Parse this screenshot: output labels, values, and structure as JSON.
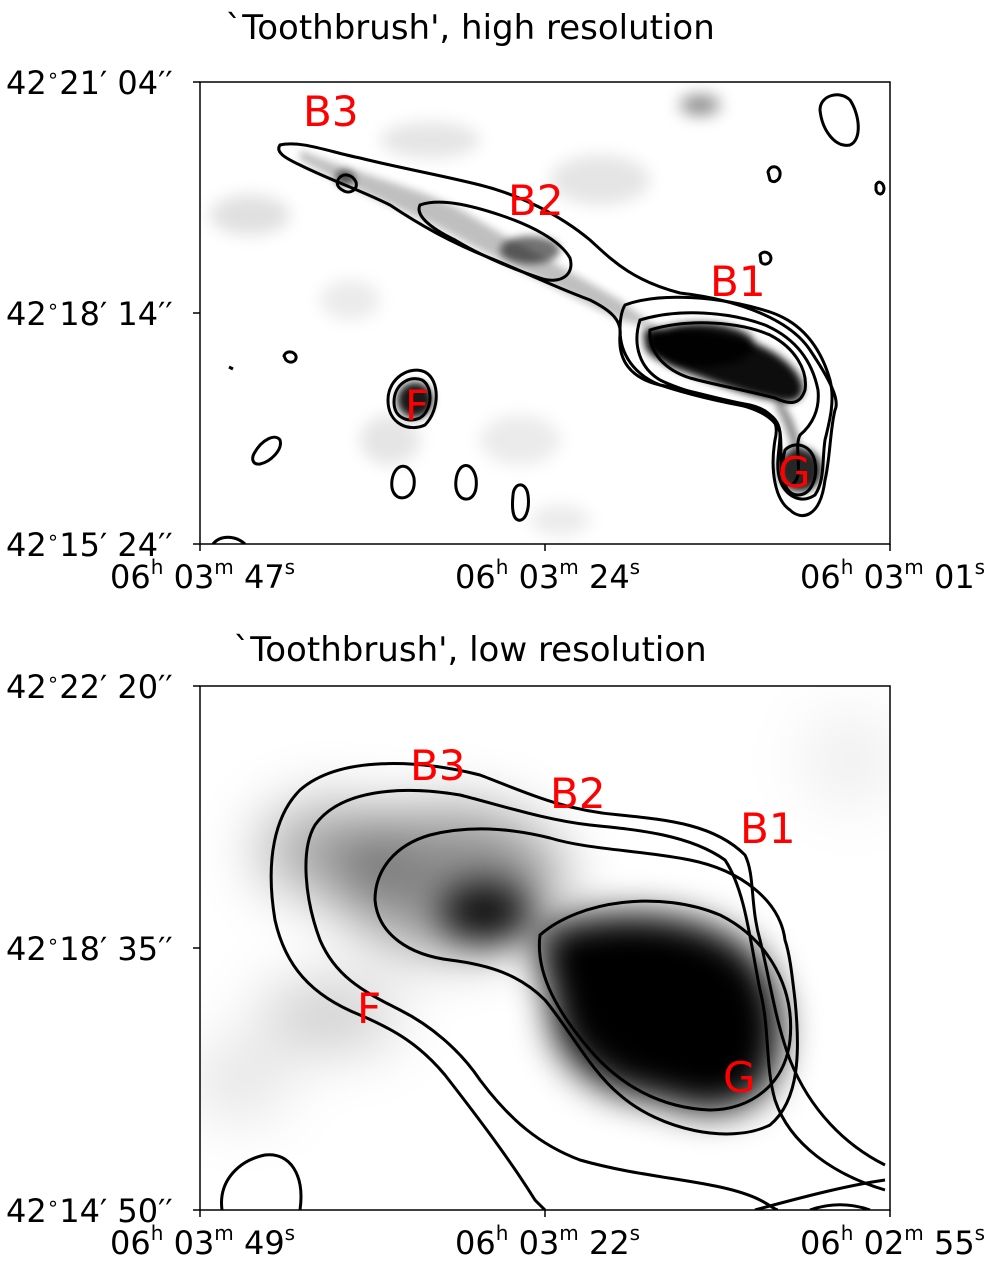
{
  "chart_data": [
    {
      "type": "image",
      "title": "`Toothbrush', high resolution",
      "y_ticks": [
        {
          "deg": "42",
          "min": "21",
          "sec": "04"
        },
        {
          "deg": "42",
          "min": "18",
          "sec": "14"
        },
        {
          "deg": "42",
          "min": "15",
          "sec": "24"
        }
      ],
      "x_ticks": [
        {
          "h": "06",
          "m": "03",
          "s": "47"
        },
        {
          "h": "06",
          "m": "03",
          "s": "24"
        },
        {
          "h": "06",
          "m": "03",
          "s": "01"
        }
      ],
      "sources": [
        "B3",
        "B2",
        "B1",
        "F",
        "G"
      ],
      "grid": false,
      "colormap": "grayscale",
      "contour_color": "#000000",
      "label_color": "#ff0000"
    },
    {
      "type": "image",
      "title": "`Toothbrush', low resolution",
      "y_ticks": [
        {
          "deg": "42",
          "min": "22",
          "sec": "20"
        },
        {
          "deg": "42",
          "min": "18",
          "sec": "35"
        },
        {
          "deg": "42",
          "min": "14",
          "sec": "50"
        }
      ],
      "x_ticks": [
        {
          "h": "06",
          "m": "03",
          "s": "49"
        },
        {
          "h": "06",
          "m": "03",
          "s": "22"
        },
        {
          "h": "06",
          "m": "02",
          "s": "55"
        }
      ],
      "sources": [
        "B3",
        "B2",
        "B1",
        "F",
        "G"
      ],
      "grid": false,
      "colormap": "grayscale",
      "contour_color": "#000000",
      "label_color": "#ff0000"
    }
  ]
}
